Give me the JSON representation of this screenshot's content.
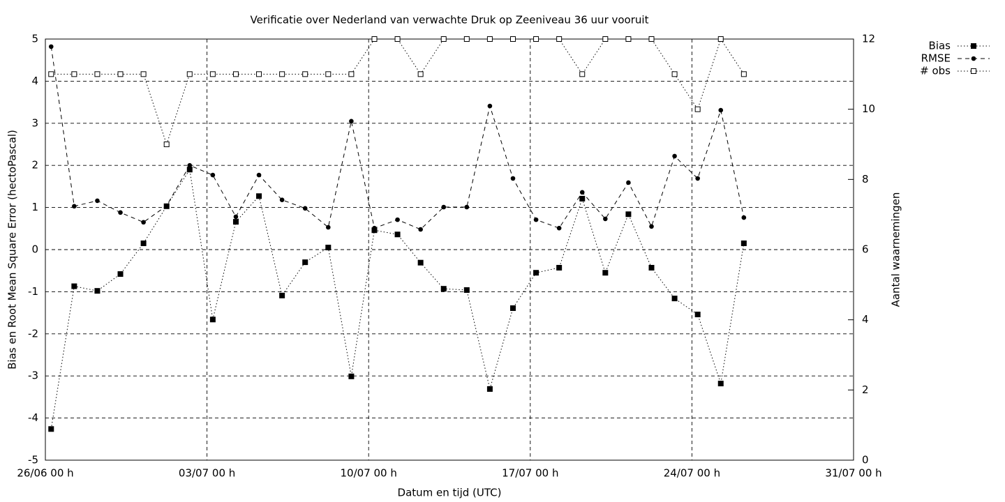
{
  "chart_data": {
    "type": "line",
    "title": "Verificatie over Nederland van verwachte Druk op Zeeniveau 36 uur vooruit",
    "xlabel": "Datum en tijd (UTC)",
    "ylabel": "Bias en Root Mean Square Error (hectoPascal)",
    "y2label": "Aantal waarnemingen",
    "x": [
      0.25,
      1.25,
      2.25,
      3.25,
      4.25,
      5.25,
      6.25,
      7.25,
      8.25,
      9.25,
      10.25,
      11.25,
      12.25,
      13.25,
      14.25,
      15.25,
      16.25,
      17.25,
      18.25,
      19.25,
      20.25,
      21.25,
      22.25,
      23.25,
      24.25,
      25.25,
      26.25,
      27.25,
      28.25,
      29.25,
      30.25
    ],
    "xlim": [
      0,
      35
    ],
    "xticks": [
      {
        "value": 0,
        "label": "26/06 00 h"
      },
      {
        "value": 7,
        "label": "03/07 00 h"
      },
      {
        "value": 14,
        "label": "10/07 00 h"
      },
      {
        "value": 21,
        "label": "17/07 00 h"
      },
      {
        "value": 28,
        "label": "24/07 00 h"
      },
      {
        "value": 35,
        "label": "31/07 00 h"
      }
    ],
    "ylim": [
      -5,
      5
    ],
    "yticks": [
      -5,
      -4,
      -3,
      -2,
      -1,
      0,
      1,
      2,
      3,
      4,
      5
    ],
    "y2lim": [
      0,
      12
    ],
    "y2ticks": [
      0,
      2,
      4,
      6,
      8,
      10,
      12
    ],
    "grid": true,
    "legend": "top-right",
    "series": [
      {
        "name": "Bias",
        "color": "#000000",
        "line_style": "dotted",
        "marker": "filled-square",
        "values": [
          -4.26,
          -0.87,
          -0.98,
          -0.58,
          0.15,
          1.03,
          1.9,
          -1.66,
          0.66,
          1.27,
          -1.09,
          -0.3,
          0.05,
          -3.01,
          0.46,
          0.36,
          -0.31,
          -0.93,
          -0.96,
          -3.31,
          -1.39,
          -0.55,
          -0.43,
          1.21,
          -0.55,
          0.84,
          -0.43,
          -1.16,
          -1.54,
          -3.18,
          0.15
        ]
      },
      {
        "name": "RMSE",
        "color": "#000000",
        "line_style": "dashed",
        "marker": "filled-circle",
        "values": [
          4.82,
          1.03,
          1.16,
          0.88,
          0.65,
          1.04,
          2.0,
          1.77,
          0.78,
          1.77,
          1.18,
          0.98,
          0.53,
          3.05,
          0.51,
          0.71,
          0.48,
          1.01,
          1.01,
          3.41,
          1.69,
          0.71,
          0.51,
          1.36,
          0.73,
          1.59,
          0.55,
          2.22,
          1.69,
          3.31,
          0.76
        ]
      },
      {
        "name": "# obs",
        "color": "#000000",
        "line_style": "dotted",
        "marker": "open-square",
        "axis": "y2",
        "values": [
          11,
          11,
          11,
          11,
          11,
          9,
          11,
          11,
          11,
          11,
          11,
          11,
          11,
          11,
          12,
          12,
          11,
          12,
          12,
          12,
          12,
          12,
          12,
          11,
          12,
          12,
          12,
          11,
          10,
          12,
          11
        ]
      }
    ]
  }
}
